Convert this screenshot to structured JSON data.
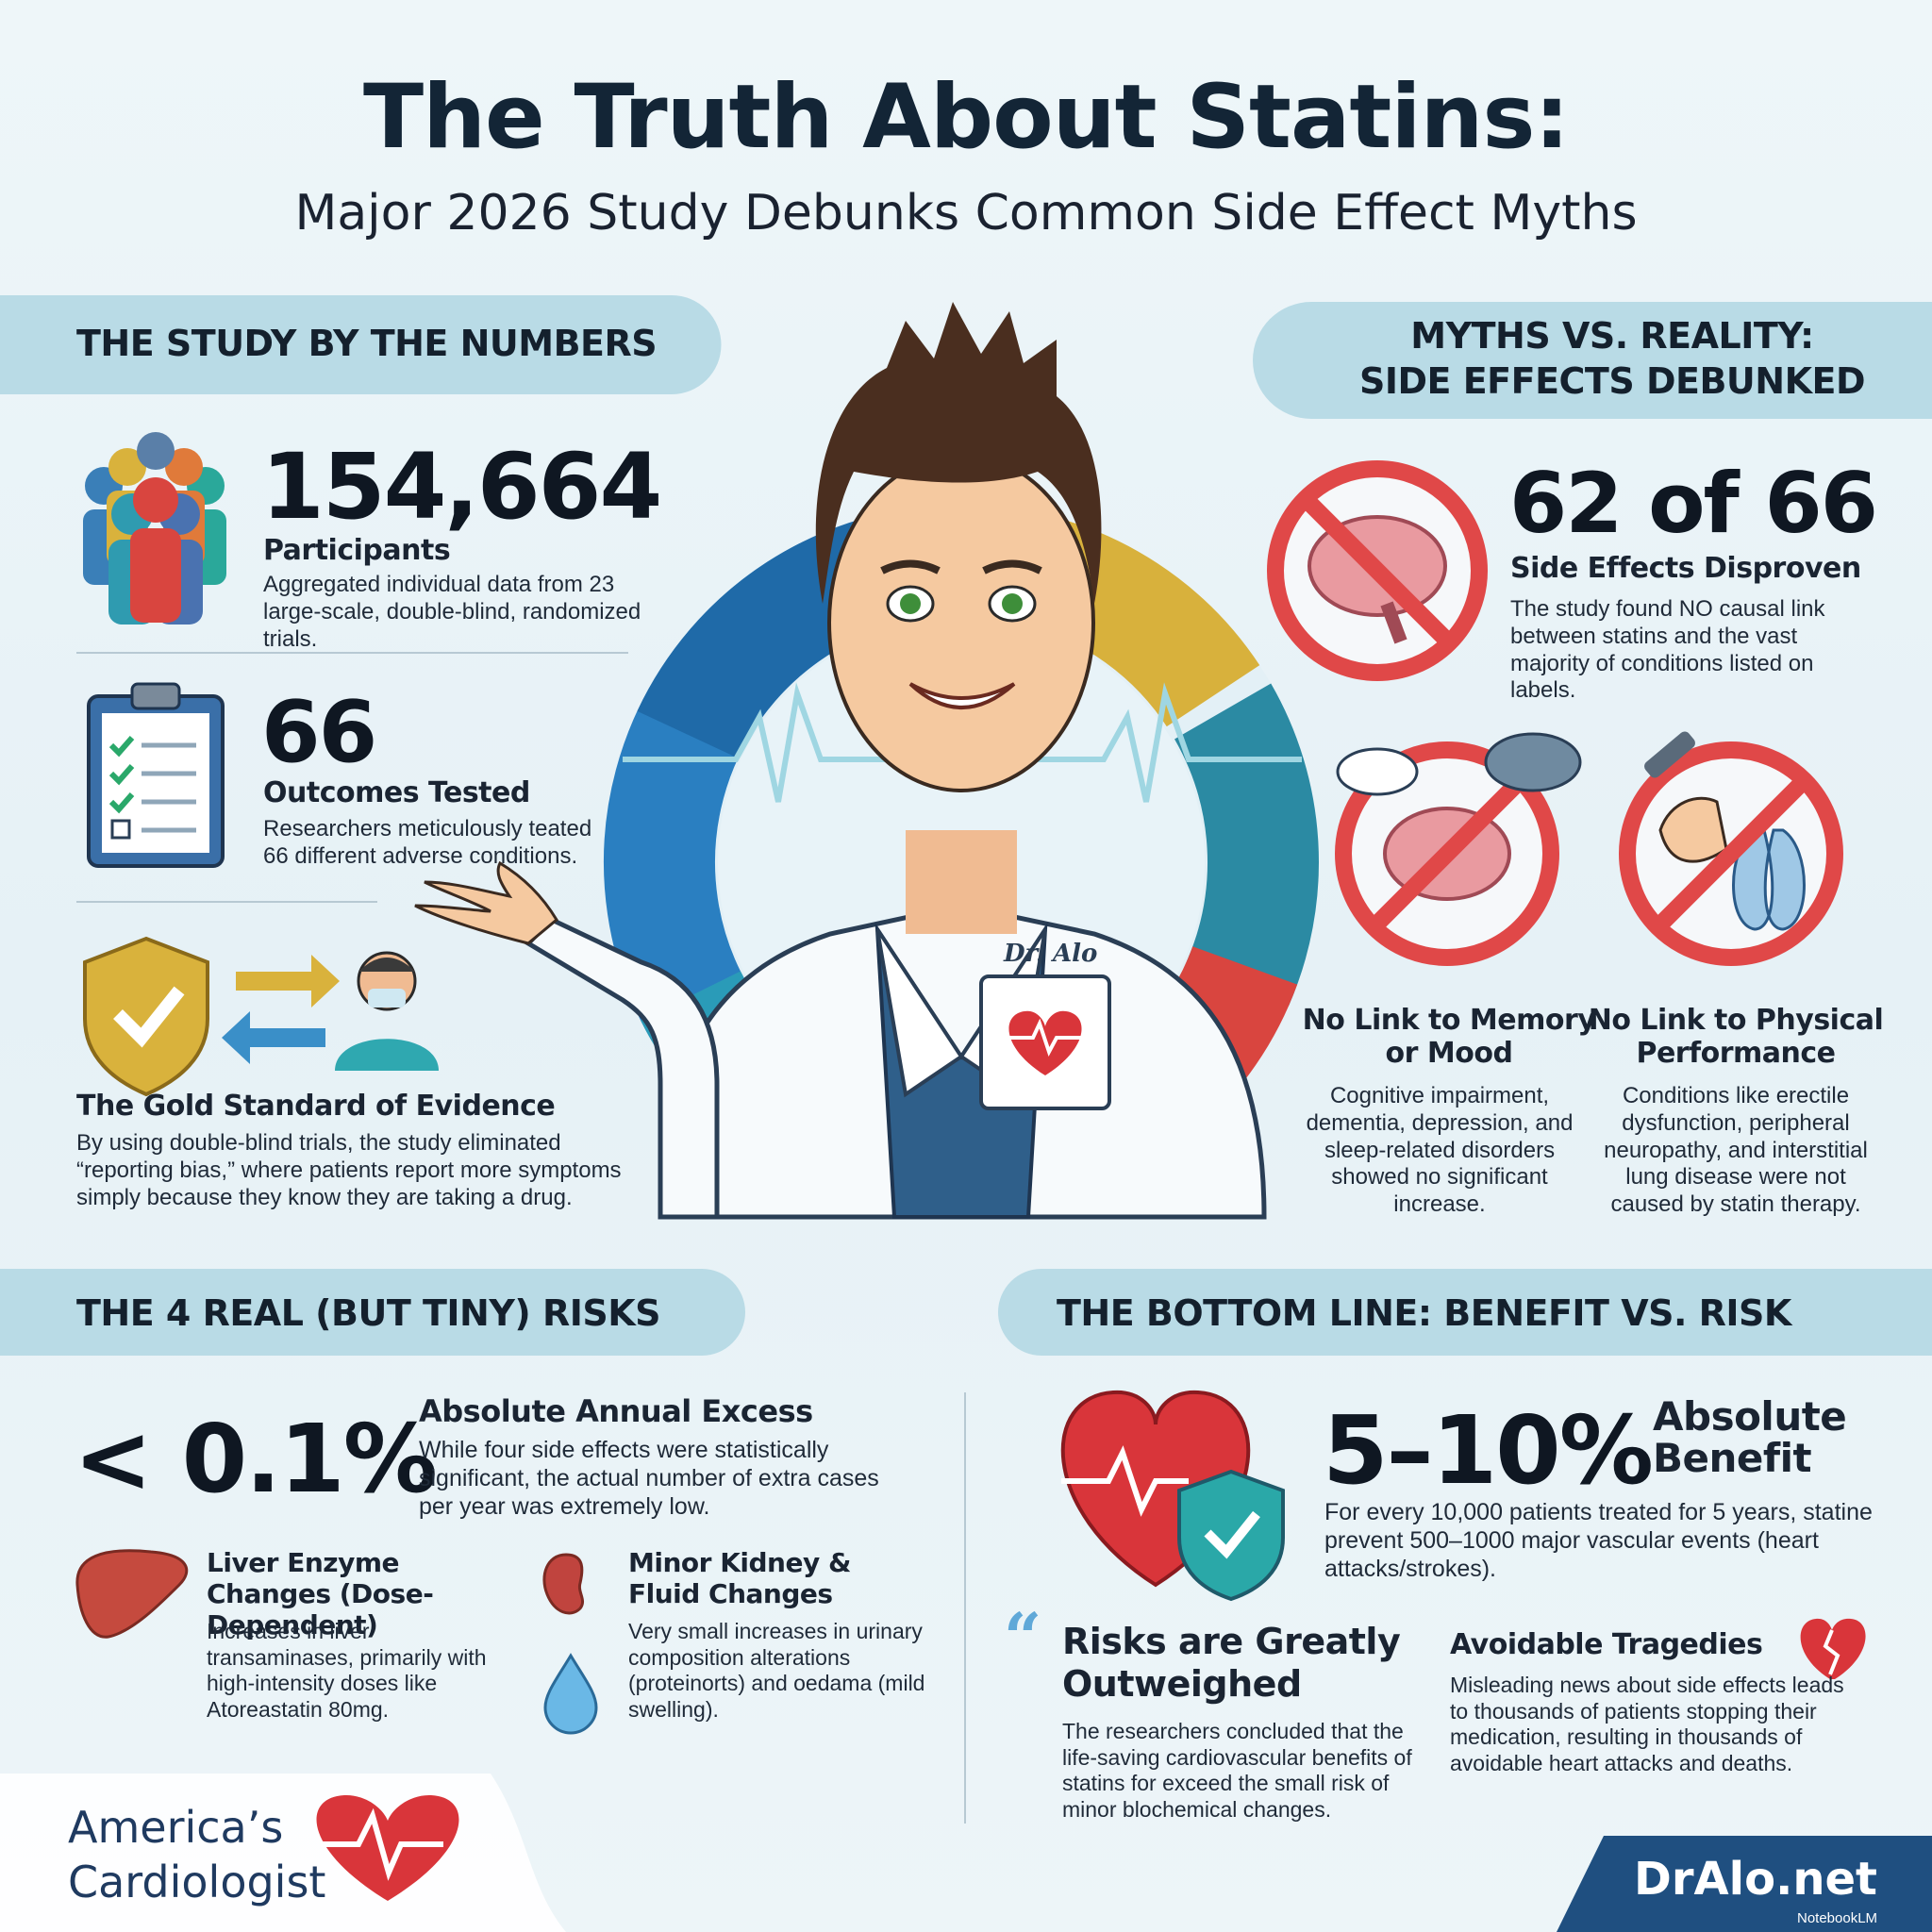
{
  "header": {
    "title": "The Truth About Statins:",
    "subtitle": "Major 2026 Study Debunks Common Side Effect Myths"
  },
  "study_numbers": {
    "heading": "THE STUDY BY THE NUMBERS",
    "participants": {
      "figure": "154,664",
      "label": "Participants",
      "description": "Aggregated individual data from 23 large-scale, double-blind, randomized trials."
    },
    "outcomes": {
      "figure": "66",
      "label": "Outcomes Tested",
      "description": "Researchers meticulously teated 66 different adverse conditions."
    },
    "gold_standard": {
      "label": "The Gold Standard of Evidence",
      "description": "By using double-blind trials, the study eliminated “reporting bias,” where patients report more symptoms simply because they know they are taking a drug."
    }
  },
  "doctor": {
    "badge": "Dr. Alo"
  },
  "myths": {
    "heading_lines": [
      "MYTHS VS. REALITY:",
      "SIDE EFFECTS DEBUNKED"
    ],
    "disproven": {
      "figure": "62 of 66",
      "label": "Side Effects Disproven",
      "description": "The study found NO causal link between statins and the vast majority of conditions listed on labels."
    },
    "memory": {
      "label": "No Link to Memory or Mood",
      "description": "Cognitive impairment, dementia, depression, and sleep-related disorders showed no significant increase."
    },
    "physical": {
      "label": "No Link to Physical Performance",
      "description": "Conditions like erectile dysfunction, peripheral neuropathy, and interstitial lung disease were not caused by statin therapy."
    }
  },
  "risks": {
    "heading": "THE 4 REAL (BUT TINY) RISKS",
    "excess": {
      "figure": "< 0.1%",
      "label": "Absolute Annual Excess",
      "description": "While four side effects were statistically significant, the actual number of extra cases per year was extremely low."
    },
    "liver": {
      "label": "Liver Enzyme Changes (Dose-Dependent)",
      "description": "Increases in liver transaminases, primarily with high-intensity doses like Atoreastatin 80mg."
    },
    "kidney": {
      "label": "Minor Kidney & Fluid Changes",
      "description": "Very small increases in urinary composition alterations (proteinorts) and oedama (mild swelling)."
    }
  },
  "bottom_line": {
    "heading": "THE BOTTOM LINE: BENEFIT VS. RISK",
    "benefit": {
      "figure": "5–10%",
      "label": "Absolute Benefit",
      "description": "For every 10,000 patients treated for 5 years, statine prevent 500–1000 major vascular events (heart attacks/strokes)."
    },
    "outweighed": {
      "label": "Risks are Greatly Outweighed",
      "description": "The researchers concluded that the life-saving cardiovascular benefits of statins for exceed the small risk of minor blochemical changes."
    },
    "tragedies": {
      "label": "Avoidable Tragedies",
      "description": "Misleading news about side effects leads to thousands of patients stopping their medication, resulting in thousands of avoidable heart attacks and deaths."
    }
  },
  "footer": {
    "brand_lines": [
      "America’s",
      "Cardiologist"
    ],
    "site": "DrAlo.net",
    "credit": "NotebookLM"
  }
}
